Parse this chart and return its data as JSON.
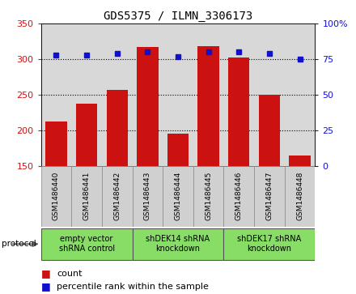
{
  "title": "GDS5375 / ILMN_3306173",
  "samples": [
    "GSM1486440",
    "GSM1486441",
    "GSM1486442",
    "GSM1486443",
    "GSM1486444",
    "GSM1486445",
    "GSM1486446",
    "GSM1486447",
    "GSM1486448"
  ],
  "counts": [
    213,
    238,
    257,
    317,
    196,
    318,
    302,
    250,
    165
  ],
  "percentiles": [
    78,
    78,
    79,
    80,
    77,
    80,
    80,
    79,
    75
  ],
  "ylim_left": [
    150,
    350
  ],
  "ylim_right": [
    0,
    100
  ],
  "yticks_left": [
    150,
    200,
    250,
    300,
    350
  ],
  "yticks_right": [
    0,
    25,
    50,
    75,
    100
  ],
  "bar_color": "#cc1111",
  "dot_color": "#1111cc",
  "group_colors": [
    "#bbeeaa",
    "#bbeeaa",
    "#bbeeaa"
  ],
  "groups": [
    {
      "label": "empty vector\nshRNA control",
      "start": 0,
      "end": 3
    },
    {
      "label": "shDEK14 shRNA\nknockdown",
      "start": 3,
      "end": 6
    },
    {
      "label": "shDEK17 shRNA\nknockdown",
      "start": 6,
      "end": 9
    }
  ],
  "legend_count_label": "count",
  "legend_percentile_label": "percentile rank within the sample",
  "protocol_label": "protocol",
  "bg_color": "#ffffff",
  "plot_bg_color": "#d8d8d8",
  "sample_box_color": "#d0d0d0"
}
